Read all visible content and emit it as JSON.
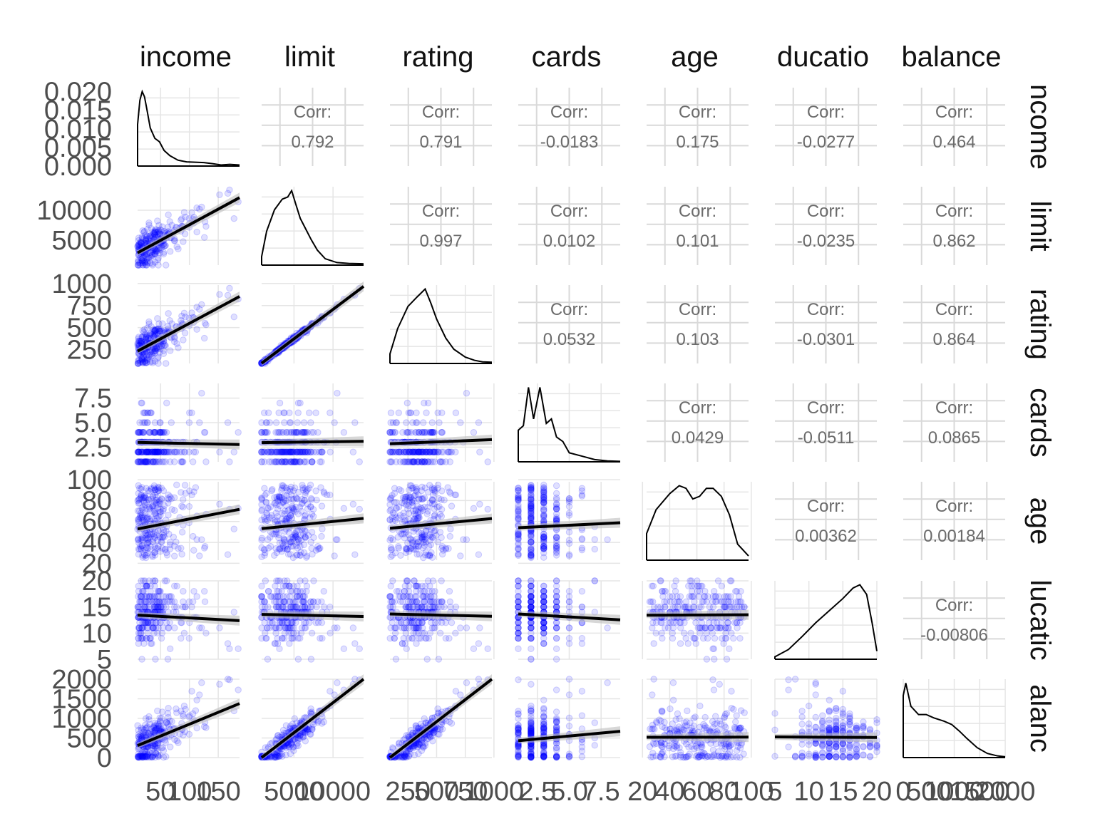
{
  "chart_data": {
    "type": "scatter",
    "subtype": "pairs-matrix",
    "title": "",
    "grid": true,
    "variables": [
      "income",
      "limit",
      "rating",
      "cards",
      "age",
      "education",
      "balance"
    ],
    "column_labels_shown": [
      "income",
      "limit",
      "rating",
      "cards",
      "age",
      "ducatio",
      "balance"
    ],
    "row_labels_shown": [
      "ncome",
      "limit",
      "rating",
      "cards",
      "age",
      "lucatic",
      "alanc"
    ],
    "corr_prefix": "Corr:",
    "correlations": [
      {
        "row": "income",
        "col": "limit",
        "label": "0.792"
      },
      {
        "row": "income",
        "col": "rating",
        "label": "0.791"
      },
      {
        "row": "income",
        "col": "cards",
        "label": "-0.0183"
      },
      {
        "row": "income",
        "col": "age",
        "label": "0.175"
      },
      {
        "row": "income",
        "col": "education",
        "label": "-0.0277"
      },
      {
        "row": "income",
        "col": "balance",
        "label": "0.464"
      },
      {
        "row": "limit",
        "col": "rating",
        "label": "0.997"
      },
      {
        "row": "limit",
        "col": "cards",
        "label": "0.0102"
      },
      {
        "row": "limit",
        "col": "age",
        "label": "0.101"
      },
      {
        "row": "limit",
        "col": "education",
        "label": "-0.0235"
      },
      {
        "row": "limit",
        "col": "balance",
        "label": "0.862"
      },
      {
        "row": "rating",
        "col": "cards",
        "label": "0.0532"
      },
      {
        "row": "rating",
        "col": "age",
        "label": "0.103"
      },
      {
        "row": "rating",
        "col": "education",
        "label": "-0.0301"
      },
      {
        "row": "rating",
        "col": "balance",
        "label": "0.864"
      },
      {
        "row": "cards",
        "col": "age",
        "label": "0.0429"
      },
      {
        "row": "cards",
        "col": "education",
        "label": "-0.0511"
      },
      {
        "row": "cards",
        "col": "balance",
        "label": "0.0865"
      },
      {
        "row": "age",
        "col": "education",
        "label": "0.00362"
      },
      {
        "row": "age",
        "col": "balance",
        "label": "0.00184"
      },
      {
        "row": "education",
        "col": "balance",
        "label": "-0.00806"
      }
    ],
    "ranges": {
      "income": [
        10,
        187
      ],
      "limit": [
        855,
        13913
      ],
      "rating": [
        93,
        982
      ],
      "cards": [
        1,
        9
      ],
      "age": [
        23,
        98
      ],
      "education": [
        5,
        20
      ],
      "balance": [
        0,
        1999
      ]
    },
    "x_ticks": {
      "income": [
        "50",
        "100",
        "150"
      ],
      "limit": [
        "5000",
        "10000"
      ],
      "rating": [
        "250",
        "500",
        "750",
        "1000"
      ],
      "cards": [
        "2.5",
        "5.0",
        "7.5"
      ],
      "age": [
        "20",
        "40",
        "60",
        "80",
        "100"
      ],
      "education": [
        "5",
        "10",
        "15",
        "20"
      ],
      "balance": [
        "0",
        "500",
        "1000",
        "1500",
        "2000"
      ]
    },
    "y_ticks": {
      "income": [
        "0.000",
        "0.005",
        "0.010",
        "0.015",
        "0.020"
      ],
      "limit": [
        "5000",
        "10000"
      ],
      "rating": [
        "250",
        "500",
        "750",
        "1000"
      ],
      "cards": [
        "2.5",
        "5.0",
        "7.5"
      ],
      "age": [
        "20",
        "40",
        "60",
        "80",
        "100"
      ],
      "education": [
        "5",
        "10",
        "15",
        "20"
      ],
      "balance": [
        "0",
        "500",
        "1000",
        "1500",
        "2000"
      ]
    },
    "density_diagonal": {
      "income": [
        [
          10,
          0.012
        ],
        [
          14,
          0.019
        ],
        [
          18,
          0.0215
        ],
        [
          22,
          0.02
        ],
        [
          26,
          0.0165
        ],
        [
          32,
          0.011
        ],
        [
          40,
          0.008
        ],
        [
          48,
          0.007
        ],
        [
          56,
          0.0045
        ],
        [
          66,
          0.003
        ],
        [
          80,
          0.0017
        ],
        [
          95,
          0.0012
        ],
        [
          110,
          0.0011
        ],
        [
          125,
          0.001
        ],
        [
          140,
          0.0007
        ],
        [
          155,
          0.0003
        ],
        [
          170,
          0.0005
        ],
        [
          187,
          0.0003
        ]
      ],
      "limit": [
        [
          855,
          2e-05
        ],
        [
          1500,
          8e-05
        ],
        [
          2500,
          0.00013
        ],
        [
          3500,
          0.000155
        ],
        [
          4200,
          0.00016
        ],
        [
          4700,
          0.000175
        ],
        [
          5200,
          0.000145
        ],
        [
          5800,
          0.00011
        ],
        [
          6500,
          8.5e-05
        ],
        [
          7200,
          6e-05
        ],
        [
          8000,
          3.5e-05
        ],
        [
          9000,
          1.5e-05
        ],
        [
          10500,
          6e-06
        ],
        [
          12000,
          4e-06
        ],
        [
          13913,
          3e-06
        ]
      ],
      "rating": [
        [
          93,
          0.0003
        ],
        [
          160,
          0.0011
        ],
        [
          250,
          0.0018
        ],
        [
          330,
          0.0021
        ],
        [
          400,
          0.00235
        ],
        [
          450,
          0.0019
        ],
        [
          500,
          0.0014
        ],
        [
          580,
          0.0008
        ],
        [
          650,
          0.00045
        ],
        [
          750,
          0.0002
        ],
        [
          830,
          0.0001
        ],
        [
          900,
          5e-05
        ],
        [
          982,
          4e-05
        ]
      ],
      "cards": [
        [
          1,
          0.14
        ],
        [
          1.4,
          0.16
        ],
        [
          1.8,
          0.33
        ],
        [
          2.2,
          0.19
        ],
        [
          2.7,
          0.33
        ],
        [
          3.2,
          0.17
        ],
        [
          3.6,
          0.19
        ],
        [
          4.0,
          0.11
        ],
        [
          4.5,
          0.09
        ],
        [
          5.0,
          0.04
        ],
        [
          6.0,
          0.025
        ],
        [
          7.0,
          0.01
        ],
        [
          8.0,
          0.004
        ],
        [
          9.0,
          0.002
        ]
      ],
      "age": [
        [
          23,
          0.005
        ],
        [
          30,
          0.0095
        ],
        [
          40,
          0.0125
        ],
        [
          47,
          0.014
        ],
        [
          52,
          0.0135
        ],
        [
          57,
          0.0115
        ],
        [
          62,
          0.012
        ],
        [
          67,
          0.0135
        ],
        [
          72,
          0.0135
        ],
        [
          78,
          0.012
        ],
        [
          84,
          0.0085
        ],
        [
          90,
          0.003
        ],
        [
          98,
          0.0008
        ]
      ],
      "education": [
        [
          5,
          0.003
        ],
        [
          7,
          0.012
        ],
        [
          9,
          0.028
        ],
        [
          11,
          0.045
        ],
        [
          13,
          0.06
        ],
        [
          15,
          0.075
        ],
        [
          16.5,
          0.088
        ],
        [
          17.5,
          0.092
        ],
        [
          18.5,
          0.08
        ],
        [
          19.3,
          0.045
        ],
        [
          20,
          0.01
        ]
      ],
      "balance": [
        [
          0,
          0.00075
        ],
        [
          50,
          0.0009
        ],
        [
          150,
          0.00062
        ],
        [
          300,
          0.00052
        ],
        [
          450,
          0.00052
        ],
        [
          600,
          0.00048
        ],
        [
          800,
          0.00044
        ],
        [
          950,
          0.0004
        ],
        [
          1100,
          0.00032
        ],
        [
          1250,
          0.00023
        ],
        [
          1450,
          0.00012
        ],
        [
          1650,
          5e-05
        ],
        [
          1850,
          2e-05
        ],
        [
          1999,
          1e-05
        ]
      ]
    },
    "regressions": [
      {
        "x": "income",
        "y": "limit",
        "intercept": 2390,
        "slope": 51.9
      },
      {
        "x": "income",
        "y": "rating",
        "intercept": 198,
        "slope": 3.5
      },
      {
        "x": "income",
        "y": "cards",
        "intercept": 2.99,
        "slope": -0.0012
      },
      {
        "x": "income",
        "y": "age",
        "intercept": 51.8,
        "slope": 0.106
      },
      {
        "x": "income",
        "y": "education",
        "intercept": 13.5,
        "slope": -0.006
      },
      {
        "x": "income",
        "y": "balance",
        "intercept": 246,
        "slope": 6.05
      },
      {
        "x": "limit",
        "y": "rating",
        "intercept": 38,
        "slope": 0.0668
      },
      {
        "x": "limit",
        "y": "cards",
        "intercept": 2.95,
        "slope": 1e-05
      },
      {
        "x": "limit",
        "y": "age",
        "intercept": 52.5,
        "slope": 0.00075
      },
      {
        "x": "limit",
        "y": "education",
        "intercept": 13.6,
        "slope": -3e-05
      },
      {
        "x": "limit",
        "y": "balance",
        "intercept": -292,
        "slope": 0.1716
      },
      {
        "x": "rating",
        "y": "cards",
        "intercept": 2.8,
        "slope": 0.00047
      },
      {
        "x": "rating",
        "y": "age",
        "intercept": 52.5,
        "slope": 0.0105
      },
      {
        "x": "rating",
        "y": "education",
        "intercept": 13.7,
        "slope": -0.0005
      },
      {
        "x": "rating",
        "y": "balance",
        "intercept": -390,
        "slope": 2.57
      },
      {
        "x": "cards",
        "y": "age",
        "intercept": 53.4,
        "slope": 0.6
      },
      {
        "x": "cards",
        "y": "education",
        "intercept": 13.8,
        "slope": -0.14
      },
      {
        "x": "cards",
        "y": "balance",
        "intercept": 400,
        "slope": 30
      },
      {
        "x": "age",
        "y": "education",
        "intercept": 13.4,
        "slope": 0.001
      },
      {
        "x": "age",
        "y": "balance",
        "intercept": 517,
        "slope": 0.05
      },
      {
        "x": "education",
        "y": "balance",
        "intercept": 530,
        "slope": -0.8
      }
    ],
    "point_color": "#0000ff",
    "point_opacity": 0.12,
    "line_color": "#000000",
    "band_color": "#bdbdbd"
  }
}
